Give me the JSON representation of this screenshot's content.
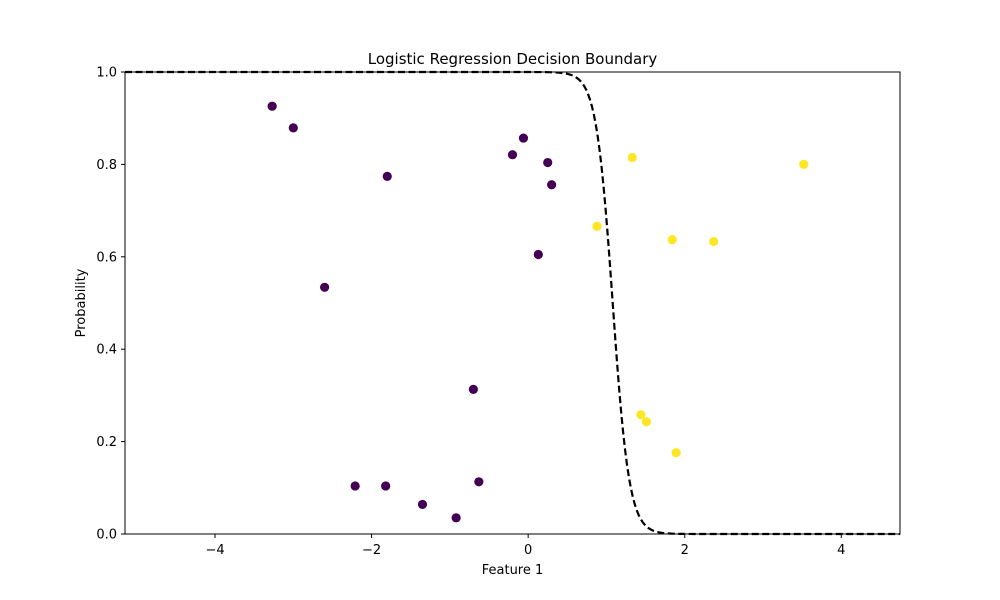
{
  "chart_data": {
    "type": "scatter",
    "title": "Logistic Regression Decision Boundary",
    "xlabel": "Feature 1",
    "ylabel": "Probability",
    "xlim": [
      -5.15,
      4.75
    ],
    "ylim": [
      0.0,
      1.0
    ],
    "xticks": [
      -4,
      -2,
      0,
      2,
      4
    ],
    "xtick_labels": [
      "−4",
      "−2",
      "0",
      "2",
      "4"
    ],
    "yticks": [
      0.0,
      0.2,
      0.4,
      0.6,
      0.8,
      1.0
    ],
    "ytick_labels": [
      "0.0",
      "0.2",
      "0.4",
      "0.6",
      "0.8",
      "1.0"
    ],
    "grid": false,
    "colors": {
      "class_0": "#440154",
      "class_1": "#fde725",
      "boundary": "#000000"
    },
    "series": [
      {
        "class": 0,
        "points": [
          {
            "x": -3.27,
            "y": 0.926
          },
          {
            "x": -3.0,
            "y": 0.879
          },
          {
            "x": -1.8,
            "y": 0.774
          },
          {
            "x": -2.6,
            "y": 0.534
          },
          {
            "x": -0.2,
            "y": 0.821
          },
          {
            "x": -0.06,
            "y": 0.857
          },
          {
            "x": 0.25,
            "y": 0.804
          },
          {
            "x": 0.3,
            "y": 0.756
          },
          {
            "x": 0.13,
            "y": 0.605
          },
          {
            "x": -0.7,
            "y": 0.313
          },
          {
            "x": -2.21,
            "y": 0.104
          },
          {
            "x": -1.82,
            "y": 0.104
          },
          {
            "x": -1.35,
            "y": 0.064
          },
          {
            "x": -0.92,
            "y": 0.035
          },
          {
            "x": -0.63,
            "y": 0.113
          }
        ]
      },
      {
        "class": 1,
        "points": [
          {
            "x": 1.33,
            "y": 0.815
          },
          {
            "x": 3.52,
            "y": 0.8
          },
          {
            "x": 0.88,
            "y": 0.666
          },
          {
            "x": 1.84,
            "y": 0.637
          },
          {
            "x": 2.37,
            "y": 0.633
          },
          {
            "x": 1.44,
            "y": 0.258
          },
          {
            "x": 1.51,
            "y": 0.243
          },
          {
            "x": 1.89,
            "y": 0.176
          }
        ]
      }
    ],
    "boundary_curve": {
      "style": "dashed",
      "formula": "1 - sigmoid(k*(x - x0))",
      "x0": 1.08,
      "k": 9.5
    }
  }
}
